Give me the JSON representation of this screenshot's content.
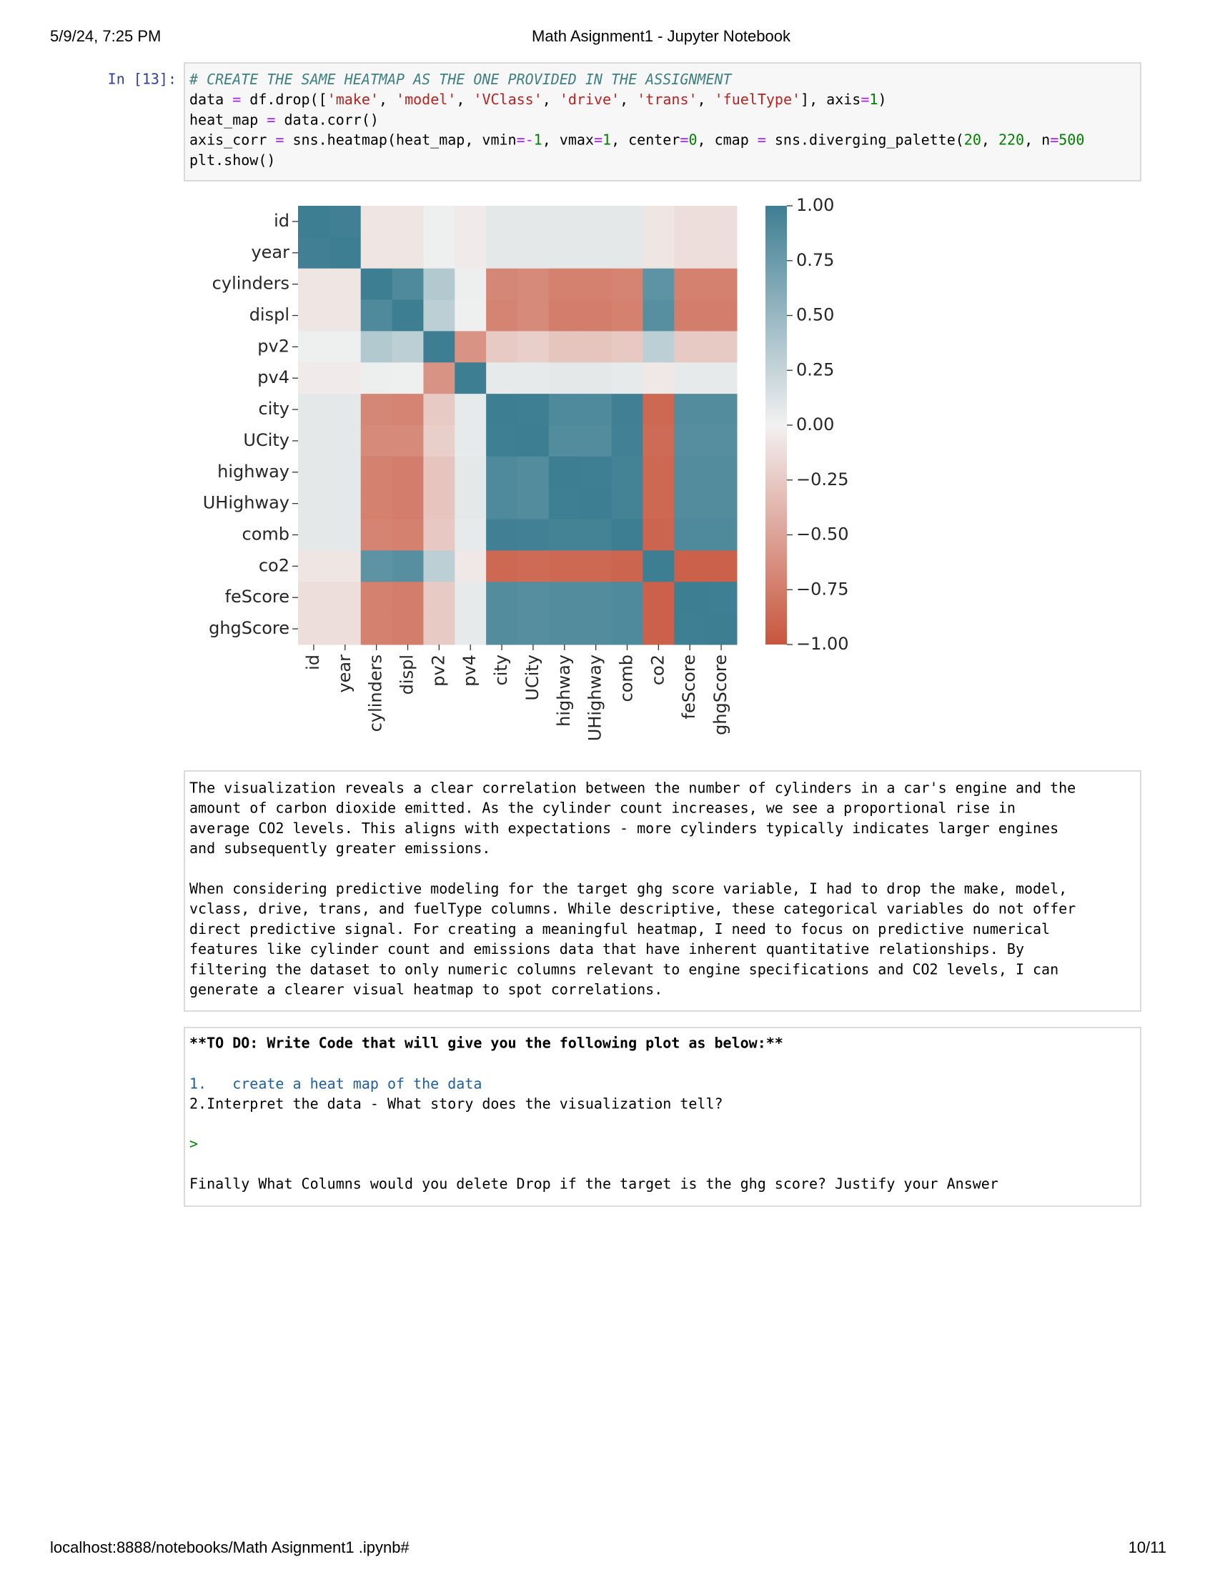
{
  "header": {
    "datetime": "5/9/24, 7:25 PM",
    "title": "Math Asignment1 - Jupyter Notebook"
  },
  "code_cell": {
    "prompt": "In [13]:",
    "lines": [
      [
        [
          "# CREATE THE SAME HEATMAP AS THE ONE PROVIDED IN THE ASSIGNMENT",
          "#408080"
        ]
      ],
      [
        [
          "data "
        ],
        [
          "=",
          "#aa22ff"
        ],
        [
          " df.drop(["
        ],
        [
          "'make'",
          "#ba2121"
        ],
        [
          ", "
        ],
        [
          "'model'",
          "#ba2121"
        ],
        [
          ", "
        ],
        [
          "'VClass'",
          "#ba2121"
        ],
        [
          ", "
        ],
        [
          "'drive'",
          "#ba2121"
        ],
        [
          ", "
        ],
        [
          "'trans'",
          "#ba2121"
        ],
        [
          ", "
        ],
        [
          "'fuelType'",
          "#ba2121"
        ],
        [
          "], axis"
        ],
        [
          "=",
          "#aa22ff"
        ],
        [
          "1",
          "#008000"
        ],
        [
          ")"
        ]
      ],
      [
        [
          "heat_map "
        ],
        [
          "=",
          "#aa22ff"
        ],
        [
          " data.corr()"
        ]
      ],
      [
        [
          "axis_corr "
        ],
        [
          "=",
          "#aa22ff"
        ],
        [
          " sns.heatmap(heat_map, vmin"
        ],
        [
          "=-",
          "#aa22ff"
        ],
        [
          "1",
          "#008000"
        ],
        [
          ", vmax"
        ],
        [
          "=",
          "#aa22ff"
        ],
        [
          "1",
          "#008000"
        ],
        [
          ", center"
        ],
        [
          "=",
          "#aa22ff"
        ],
        [
          "0",
          "#008000"
        ],
        [
          ", cmap "
        ],
        [
          "=",
          "#aa22ff"
        ],
        [
          " sns.diverging_palette("
        ],
        [
          "20",
          "#008000"
        ],
        [
          ", "
        ],
        [
          "220",
          "#008000"
        ],
        [
          ", n"
        ],
        [
          "=",
          "#aa22ff"
        ],
        [
          "500",
          "#008000"
        ]
      ],
      [
        [
          "plt.show()"
        ]
      ]
    ]
  },
  "chart_data": {
    "type": "heatmap",
    "categories": [
      "id",
      "year",
      "cylinders",
      "displ",
      "pv2",
      "pv4",
      "city",
      "UCity",
      "highway",
      "UHighway",
      "comb",
      "co2",
      "feScore",
      "ghgScore"
    ],
    "values": [
      [
        1,
        0.98,
        -0.08,
        -0.08,
        0.02,
        -0.04,
        0.08,
        0.08,
        0.08,
        0.08,
        0.08,
        -0.08,
        -0.12,
        -0.12
      ],
      [
        0.98,
        1,
        -0.08,
        -0.08,
        0.02,
        -0.04,
        0.08,
        0.08,
        0.08,
        0.08,
        0.08,
        -0.08,
        -0.12,
        -0.12
      ],
      [
        -0.08,
        -0.08,
        1,
        0.9,
        0.35,
        0.03,
        -0.68,
        -0.66,
        -0.72,
        -0.72,
        -0.7,
        0.82,
        -0.72,
        -0.72
      ],
      [
        -0.08,
        -0.08,
        0.9,
        1,
        0.3,
        0.02,
        -0.7,
        -0.66,
        -0.74,
        -0.74,
        -0.72,
        0.85,
        -0.74,
        -0.74
      ],
      [
        0.02,
        0.02,
        0.35,
        0.3,
        1,
        -0.6,
        -0.25,
        -0.22,
        -0.28,
        -0.28,
        -0.26,
        0.3,
        -0.25,
        -0.25
      ],
      [
        -0.04,
        -0.04,
        0.03,
        0.02,
        -0.6,
        1,
        0.06,
        0.06,
        0.08,
        0.08,
        0.06,
        -0.06,
        0.06,
        0.06
      ],
      [
        0.08,
        0.08,
        -0.68,
        -0.7,
        -0.25,
        0.06,
        1,
        0.99,
        0.9,
        0.9,
        0.98,
        -0.88,
        0.88,
        0.88
      ],
      [
        0.08,
        0.08,
        -0.66,
        -0.66,
        -0.22,
        0.06,
        0.99,
        1,
        0.88,
        0.88,
        0.97,
        -0.86,
        0.86,
        0.86
      ],
      [
        0.08,
        0.08,
        -0.72,
        -0.74,
        -0.28,
        0.08,
        0.9,
        0.88,
        1,
        0.99,
        0.96,
        -0.88,
        0.88,
        0.88
      ],
      [
        0.08,
        0.08,
        -0.72,
        -0.74,
        -0.28,
        0.08,
        0.9,
        0.88,
        0.99,
        1,
        0.96,
        -0.88,
        0.88,
        0.88
      ],
      [
        0.08,
        0.08,
        -0.7,
        -0.72,
        -0.26,
        0.06,
        0.98,
        0.97,
        0.96,
        0.96,
        1,
        -0.9,
        0.9,
        0.9
      ],
      [
        -0.08,
        -0.08,
        0.82,
        0.85,
        0.3,
        -0.06,
        -0.88,
        -0.86,
        -0.88,
        -0.88,
        -0.9,
        1,
        -0.92,
        -0.92
      ],
      [
        -0.12,
        -0.12,
        -0.72,
        -0.74,
        -0.25,
        0.06,
        0.88,
        0.86,
        0.88,
        0.88,
        0.9,
        -0.92,
        1,
        0.99
      ],
      [
        -0.12,
        -0.12,
        -0.72,
        -0.74,
        -0.25,
        0.06,
        0.88,
        0.86,
        0.88,
        0.88,
        0.9,
        -0.92,
        0.99,
        1
      ]
    ],
    "clim": [
      -1,
      1
    ],
    "center": 0,
    "colormap": [
      "#c8553d",
      "#f2f1f1",
      "#3d7e92"
    ],
    "cticks": [
      {
        "value": 1,
        "label": "1.00"
      },
      {
        "value": 0.75,
        "label": "0.75"
      },
      {
        "value": 0.5,
        "label": "0.50"
      },
      {
        "value": 0.25,
        "label": "0.25"
      },
      {
        "value": 0,
        "label": "0.00"
      },
      {
        "value": -0.25,
        "label": "−0.25"
      },
      {
        "value": -0.5,
        "label": "−0.50"
      },
      {
        "value": -0.75,
        "label": "−0.75"
      },
      {
        "value": -1,
        "label": "−1.00"
      }
    ]
  },
  "markdown_1": {
    "paragraphs": [
      [
        "The visualization reveals a clear correlation between the number of cylinders in a car's engine and the",
        "amount of carbon dioxide emitted. As the cylinder count increases, we see a proportional rise in",
        "average CO2 levels. This aligns with expectations - more cylinders typically indicates larger engines",
        "and subsequently greater emissions."
      ],
      [
        "When considering predictive modeling for the target ghg score variable, I had to drop the make, model,",
        "vclass, drive, trans, and fuelType columns. While descriptive, these categorical variables do not offer",
        "direct predictive signal. For creating a meaningful heatmap, I need to focus on predictive numerical",
        "features like cylinder count and emissions data that have inherent quantitative relationships. By",
        "filtering the dataset to only numeric columns relevant to engine specifications and CO2 levels, I can",
        "generate a clearer visual heatmap to spot correlations."
      ]
    ]
  },
  "markdown_2": {
    "heading": "**TO DO: Write Code that will give you the following plot as below:**",
    "item_1": "1.   create a heat map of the data",
    "item_2": "2.Interpret the data - What story does the visualization tell?",
    "quote": ">",
    "question": "Finally What Columns would you delete Drop if the target is the ghg score? Justify your Answer"
  },
  "footer": {
    "url": "localhost:8888/notebooks/Math Asignment1 .ipynb#",
    "page": "10/11"
  }
}
